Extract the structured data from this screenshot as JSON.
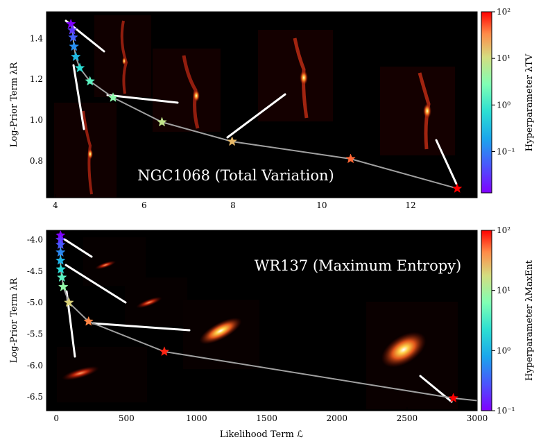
{
  "chart_data": [
    {
      "type": "line",
      "title": "NGC1068 (Total Variation)",
      "xlabel": "",
      "ylabel": "Log-Prior Term λR",
      "xlim": [
        3.8,
        13.5
      ],
      "ylim": [
        0.62,
        1.53
      ],
      "xticks": [
        "4",
        "6",
        "8",
        "10",
        "12"
      ],
      "yticks": [
        "0.8",
        "1.0",
        "1.2",
        "1.4"
      ],
      "colorbar": {
        "label": "Hyperparameter λTV",
        "scale": "log",
        "range": [
          0.013,
          100
        ],
        "ticks": [
          "10⁻¹",
          "10⁰",
          "10¹",
          "10²"
        ]
      },
      "series": [
        {
          "x": [
            4.35,
            4.38,
            4.4,
            4.42,
            4.46,
            4.55,
            4.78,
            5.3,
            6.4,
            7.98,
            10.65,
            13.05
          ],
          "y": [
            1.47,
            1.44,
            1.405,
            1.36,
            1.31,
            1.255,
            1.19,
            1.11,
            0.99,
            0.895,
            0.81,
            0.665
          ],
          "lambda": [
            0.013,
            0.03,
            0.06,
            0.13,
            0.3,
            0.7,
            1.6,
            3.5,
            8,
            18,
            45,
            100
          ]
        }
      ]
    },
    {
      "type": "line",
      "title": "WR137 (Maximum Entropy)",
      "xlabel": "Likelihood Term ℒ",
      "ylabel": "Log-Prior Term λR",
      "xlim": [
        -70,
        3000
      ],
      "ylim": [
        -6.72,
        -3.85
      ],
      "xticks": [
        "0",
        "500",
        "1000",
        "1500",
        "2000",
        "2500",
        "3000"
      ],
      "yticks": [
        "-4.0",
        "-4.5",
        "-5.0",
        "-5.5",
        "-6.0",
        "-6.5"
      ],
      "colorbar": {
        "label": "Hyperparameter λMaxEnt",
        "scale": "log",
        "range": [
          0.1,
          100
        ],
        "ticks": [
          "10⁻¹",
          "10⁰",
          "10¹",
          "10²"
        ]
      },
      "series": [
        {
          "x": [
            30,
            30,
            30,
            30,
            30,
            32,
            40,
            50,
            90,
            230,
            770,
            2830,
            3000
          ],
          "y": [
            -3.93,
            -4.0,
            -4.08,
            -4.2,
            -4.33,
            -4.47,
            -4.6,
            -4.75,
            -5.0,
            -5.3,
            -5.78,
            -6.52,
            -6.56
          ],
          "lambda": [
            0.1,
            0.18,
            0.3,
            0.55,
            1.0,
            2.0,
            4.0,
            8.0,
            20,
            45,
            80,
            100,
            null
          ]
        }
      ]
    }
  ]
}
